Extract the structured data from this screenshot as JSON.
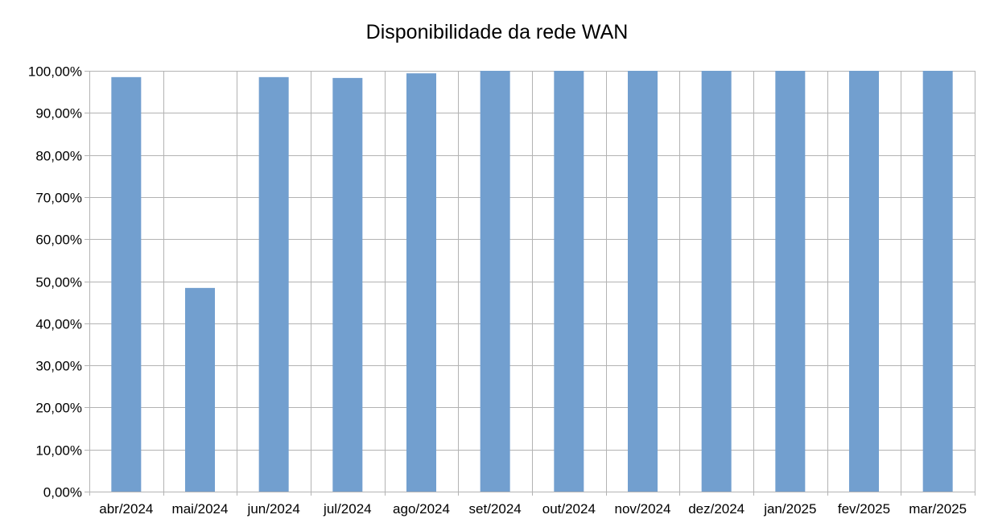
{
  "colors": {
    "bar": "#729fcf",
    "grid": "#b3b3b3",
    "text": "#000000",
    "background": "#ffffff"
  },
  "chart_data": {
    "type": "bar",
    "title": "Disponibilidade da rede WAN",
    "xlabel": "",
    "ylabel": "",
    "categories": [
      "abr/2024",
      "mai/2024",
      "jun/2024",
      "jul/2024",
      "ago/2024",
      "set/2024",
      "out/2024",
      "nov/2024",
      "dez/2024",
      "jan/2025",
      "fev/2025",
      "mar/2025"
    ],
    "values": [
      98.5,
      48.4,
      98.5,
      98.3,
      99.4,
      100,
      100,
      100,
      100,
      100,
      100,
      100
    ],
    "ylim": [
      0,
      100
    ],
    "yticks": [
      "0,00%",
      "10,00%",
      "20,00%",
      "30,00%",
      "40,00%",
      "50,00%",
      "60,00%",
      "70,00%",
      "80,00%",
      "90,00%",
      "100,00%"
    ],
    "grid": true,
    "legend": "none"
  }
}
